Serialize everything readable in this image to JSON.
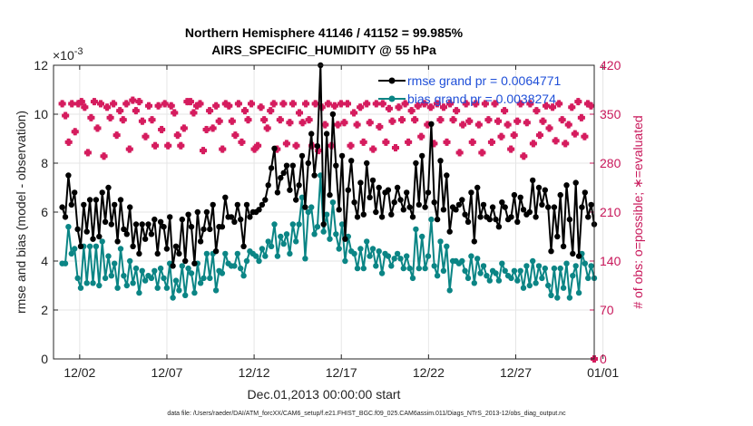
{
  "chart_data": {
    "type": "line",
    "title": [
      "Northern Hemisphere 41146 / 41152 = 99.985%",
      "AIRS_SPECIFIC_HUMIDITY @ 55 hPa"
    ],
    "xlabel": "Dec.01,2013 00:00:00 start",
    "ylabel_left": "rmse and bias (model - observation)",
    "ylabel_right": "# of obs: o=possible; ∗=evaluated",
    "y_exponent": "×10",
    "y_exponent_power": "-3",
    "x_range_days": [
      0.5,
      31.5
    ],
    "ylim_left": [
      0,
      12
    ],
    "ylim_right": [
      0,
      420
    ],
    "x_ticks": [
      {
        "day": 2,
        "label": "12/02"
      },
      {
        "day": 7,
        "label": "12/07"
      },
      {
        "day": 12,
        "label": "12/12"
      },
      {
        "day": 17,
        "label": "12/17"
      },
      {
        "day": 22,
        "label": "12/22"
      },
      {
        "day": 27,
        "label": "12/27"
      },
      {
        "day": 32,
        "label": "01/01"
      }
    ],
    "y_ticks_left": [
      0,
      2,
      4,
      6,
      8,
      10,
      12
    ],
    "y_ticks_right": [
      0,
      70,
      140,
      210,
      280,
      350,
      420
    ],
    "series": [
      {
        "name": "rmse",
        "legend": "rmse grand pr = 0.0064771",
        "color": "#000000",
        "values": [
          6.2,
          5.8,
          7.5,
          6.3,
          6.8,
          5.3,
          4.6,
          6.3,
          5.2,
          6.5,
          4.9,
          6.5,
          5.0,
          6.8,
          5.6,
          7.0,
          5.5,
          6.3,
          4.8,
          6.5,
          5.3,
          5.1,
          6.2,
          4.6,
          5.5,
          4.3,
          5.5,
          4.9,
          5.5,
          5.1,
          5.7,
          4.3,
          5.6,
          5.4,
          4.5,
          5.8,
          3.8,
          4.6,
          4.3,
          5.7,
          4.0,
          5.9,
          5.4,
          3.9,
          6.0,
          4.8,
          5.3,
          6.0,
          5.3,
          6.3,
          4.4,
          5.4,
          5.4,
          6.6,
          5.8,
          5.8,
          5.6,
          6.3,
          5.7,
          4.6,
          6.3,
          5.8,
          6.0,
          6.0,
          6.1,
          6.3,
          6.5,
          7.1,
          7.8,
          8.6,
          6.8,
          7.4,
          7.6,
          7.9,
          6.9,
          7.9,
          6.5,
          7.1,
          8.3,
          6.2,
          8.0,
          9.2,
          7.5,
          8.7,
          12.0,
          5.5,
          9.2,
          6.7,
          10.0,
          7.9,
          6.1,
          8.3,
          4.9,
          6.9,
          8.1,
          6.4,
          5.8,
          7.2,
          5.9,
          8.0,
          6.6,
          7.3,
          6.0,
          7.0,
          5.8,
          6.8,
          6.9,
          5.9,
          6.4,
          7.0,
          6.5,
          6.1,
          6.8,
          6.2,
          5.8,
          8.0,
          6.3,
          8.3,
          6.2,
          6.8,
          9.6,
          6.4,
          5.7,
          8.1,
          6.1,
          7.5,
          5.2,
          6.2,
          6.1,
          6.3,
          6.5,
          5.9,
          5.6,
          6.8,
          4.8,
          7.0,
          5.8,
          6.3,
          5.8,
          5.7,
          6.2,
          5.7,
          5.4,
          6.4,
          6.2,
          5.7,
          5.8,
          6.7,
          5.6,
          6.6,
          6.1,
          5.9,
          6.0,
          7.3,
          5.8,
          7.0,
          6.3,
          6.9,
          6.2,
          4.4,
          6.2,
          5.0,
          6.7,
          4.6,
          7.1,
          5.7,
          4.3,
          7.2,
          4.2,
          6.2,
          6.8,
          5.8,
          6.3,
          5.5
        ]
      },
      {
        "name": "bias",
        "legend": "bias grand pr = 0.0038274",
        "color": "#0b8585",
        "values": [
          3.9,
          3.9,
          5.4,
          4.3,
          4.5,
          3.3,
          2.9,
          4.6,
          3.1,
          4.6,
          3.1,
          4.6,
          3.0,
          4.8,
          3.3,
          4.2,
          3.4,
          3.9,
          2.9,
          4.5,
          3.4,
          3.0,
          4.0,
          3.1,
          3.7,
          2.7,
          3.6,
          3.2,
          3.4,
          3.3,
          3.6,
          2.9,
          3.7,
          3.3,
          2.9,
          3.9,
          2.5,
          3.2,
          2.8,
          3.8,
          2.6,
          3.7,
          3.5,
          2.7,
          3.9,
          3.1,
          3.3,
          4.3,
          3.3,
          4.3,
          2.8,
          3.6,
          3.5,
          4.3,
          3.9,
          3.8,
          3.8,
          4.3,
          3.7,
          3.4,
          4.0,
          4.4,
          4.3,
          4.2,
          4.0,
          4.5,
          4.2,
          4.8,
          4.6,
          5.5,
          4.2,
          5.0,
          4.7,
          5.1,
          4.3,
          5.5,
          4.8,
          5.5,
          6.6,
          4.1,
          6.0,
          6.2,
          5.1,
          5.4,
          7.5,
          5.2,
          5.9,
          4.9,
          6.4,
          5.1,
          4.5,
          5.5,
          4.0,
          5.0,
          4.4,
          4.3,
          3.7,
          4.5,
          3.7,
          4.8,
          4.2,
          4.5,
          3.8,
          4.4,
          3.5,
          4.3,
          4.2,
          3.8,
          4.1,
          4.3,
          4.1,
          3.7,
          4.2,
          3.7,
          3.3,
          5.3,
          3.7,
          5.0,
          3.7,
          4.2,
          5.7,
          3.8,
          3.4,
          4.8,
          3.6,
          4.6,
          2.8,
          4.0,
          4.0,
          3.9,
          4.0,
          3.6,
          3.3,
          4.2,
          3.1,
          4.1,
          3.5,
          3.8,
          3.4,
          3.2,
          3.6,
          3.5,
          3.2,
          3.9,
          3.6,
          3.4,
          3.3,
          3.6,
          3.2,
          3.6,
          2.9,
          3.8,
          3.0,
          4.0,
          3.1,
          3.8,
          3.3,
          3.7,
          3.0,
          2.6,
          3.7,
          2.5,
          3.7,
          2.9,
          3.9,
          2.5,
          3.4,
          3.8,
          2.7,
          4.3,
          3.9,
          3.3,
          3.8,
          3.3
        ]
      },
      {
        "name": "obs",
        "axis": "right",
        "color": "#d51c5e",
        "values": [
          365,
          348,
          310,
          365,
          325,
          365,
          368,
          360,
          295,
          345,
          368,
          330,
          365,
          290,
          360,
          345,
          365,
          320,
          355,
          342,
          365,
          300,
          370,
          355,
          368,
          340,
          318,
          362,
          342,
          305,
          362,
          328,
          365,
          305,
          362,
          352,
          320,
          305,
          330,
          368,
          368,
          352,
          362,
          365,
          298,
          328,
          355,
          330,
          362,
          340,
          300,
          365,
          362,
          340,
          320,
          365,
          310,
          355,
          342,
          365,
          300,
          305,
          360,
          342,
          330,
          355,
          365,
          300,
          342,
          365,
          308,
          338,
          365,
          305,
          352,
          338,
          365,
          342,
          305,
          365,
          298,
          360,
          335,
          365,
          305,
          362,
          335,
          365,
          338,
          365,
          305,
          352,
          335,
          360,
          310,
          365,
          338,
          300,
          365,
          332,
          365,
          310,
          358,
          340,
          302,
          360,
          342,
          365,
          310,
          355,
          342,
          362,
          318,
          365,
          335,
          360,
          308,
          365,
          342,
          360,
          310,
          365,
          342,
          355,
          295,
          335,
          365,
          340,
          310,
          365,
          335,
          295,
          365,
          342,
          310,
          365,
          340,
          318,
          355,
          335,
          300,
          320,
          340,
          365,
          290,
          338,
          365,
          308,
          355,
          320,
          340,
          362,
          330,
          360,
          312,
          365,
          342,
          308,
          335,
          360,
          322,
          368,
          345,
          318,
          365,
          362,
          0
        ]
      }
    ]
  },
  "footnote": "data file: /Users/raeder/DAI/ATM_forcXX/CAM6_setup/f.e21.FHIST_BGC.f09_025.CAM6assim.011/Diags_NTrS_2013-12/obs_diag_output.nc"
}
